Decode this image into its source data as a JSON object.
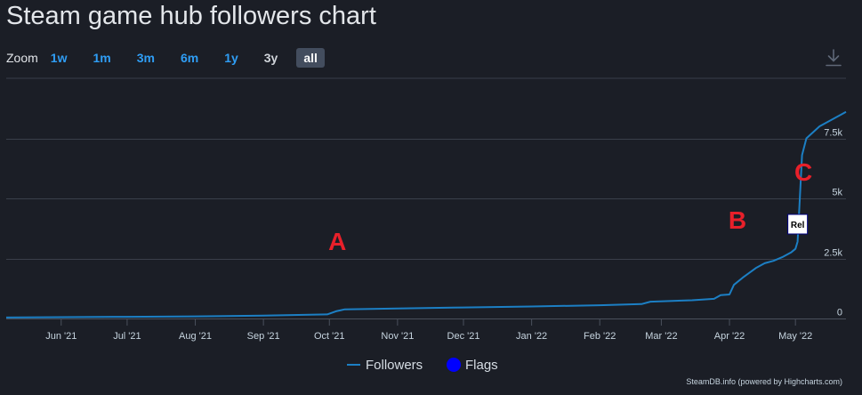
{
  "title": "Steam game hub followers chart",
  "zoom": {
    "label": "Zoom",
    "buttons": [
      {
        "label": "1w",
        "state": "enabled"
      },
      {
        "label": "1m",
        "state": "enabled"
      },
      {
        "label": "3m",
        "state": "enabled"
      },
      {
        "label": "6m",
        "state": "enabled"
      },
      {
        "label": "1y",
        "state": "enabled"
      },
      {
        "label": "3y",
        "state": "muted"
      },
      {
        "label": "all",
        "state": "active"
      }
    ]
  },
  "download_icon": "download-icon",
  "credit": "SteamDB.info (powered by Highcharts.com)",
  "colors": {
    "background": "#1b1e26",
    "series": "#1c7fc4",
    "flags": "#0000ff",
    "annotation": "#e8202a",
    "grid": "#3a3f4a",
    "axis_text": "#c6d4df"
  },
  "chart_data": {
    "type": "line",
    "title": "",
    "xlabel": "",
    "ylabel": "",
    "xlim": [
      "2021-05-07",
      "2022-05-24"
    ],
    "ylim": [
      0,
      10000
    ],
    "y_ticks": [
      {
        "value": 0,
        "label": "0"
      },
      {
        "value": 2500,
        "label": "2.5k"
      },
      {
        "value": 5000,
        "label": "5k"
      },
      {
        "value": 7500,
        "label": "7.5k"
      }
    ],
    "x_ticks": [
      {
        "date": "2021-06-01",
        "label": "Jun '21"
      },
      {
        "date": "2021-07-01",
        "label": "Jul '21"
      },
      {
        "date": "2021-08-01",
        "label": "Aug '21"
      },
      {
        "date": "2021-09-01",
        "label": "Sep '21"
      },
      {
        "date": "2021-10-01",
        "label": "Oct '21"
      },
      {
        "date": "2021-11-01",
        "label": "Nov '21"
      },
      {
        "date": "2021-12-01",
        "label": "Dec '21"
      },
      {
        "date": "2022-01-01",
        "label": "Jan '22"
      },
      {
        "date": "2022-02-01",
        "label": "Feb '22"
      },
      {
        "date": "2022-03-01",
        "label": "Mar '22"
      },
      {
        "date": "2022-04-01",
        "label": "Apr '22"
      },
      {
        "date": "2022-05-01",
        "label": "May '22"
      }
    ],
    "grid": true,
    "legend": {
      "position": "bottom-center",
      "items": [
        {
          "label": "Followers",
          "symbol": "line",
          "color": "#1c7fc4"
        },
        {
          "label": "Flags",
          "symbol": "circle",
          "color": "#0000ff"
        }
      ]
    },
    "series": [
      {
        "name": "Followers",
        "points": [
          [
            "2021-05-07",
            40
          ],
          [
            "2021-06-01",
            55
          ],
          [
            "2021-07-01",
            70
          ],
          [
            "2021-08-01",
            90
          ],
          [
            "2021-09-01",
            120
          ],
          [
            "2021-09-30",
            170
          ],
          [
            "2021-10-04",
            300
          ],
          [
            "2021-10-08",
            380
          ],
          [
            "2021-11-01",
            420
          ],
          [
            "2021-12-01",
            460
          ],
          [
            "2022-01-01",
            500
          ],
          [
            "2022-02-01",
            550
          ],
          [
            "2022-02-20",
            600
          ],
          [
            "2022-02-24",
            700
          ],
          [
            "2022-03-15",
            760
          ],
          [
            "2022-03-25",
            820
          ],
          [
            "2022-03-28",
            970
          ],
          [
            "2022-04-01",
            1000
          ],
          [
            "2022-04-03",
            1400
          ],
          [
            "2022-04-07",
            1700
          ],
          [
            "2022-04-13",
            2100
          ],
          [
            "2022-04-17",
            2300
          ],
          [
            "2022-04-21",
            2400
          ],
          [
            "2022-04-25",
            2550
          ],
          [
            "2022-04-29",
            2750
          ],
          [
            "2022-05-01",
            2900
          ],
          [
            "2022-05-02",
            3200
          ],
          [
            "2022-05-03",
            5000
          ],
          [
            "2022-05-04",
            6800
          ],
          [
            "2022-05-06",
            7500
          ],
          [
            "2022-05-12",
            8000
          ],
          [
            "2022-05-24",
            8600
          ]
        ]
      }
    ],
    "flags": [
      {
        "date": "2022-05-02",
        "label": "Rel"
      }
    ],
    "annotations": [
      {
        "text": "A",
        "date": "2021-10-01",
        "value": 2850
      },
      {
        "text": "B",
        "date": "2022-04-01",
        "value": 3750
      },
      {
        "text": "C",
        "date": "2022-05-01",
        "value": 5750
      }
    ]
  }
}
